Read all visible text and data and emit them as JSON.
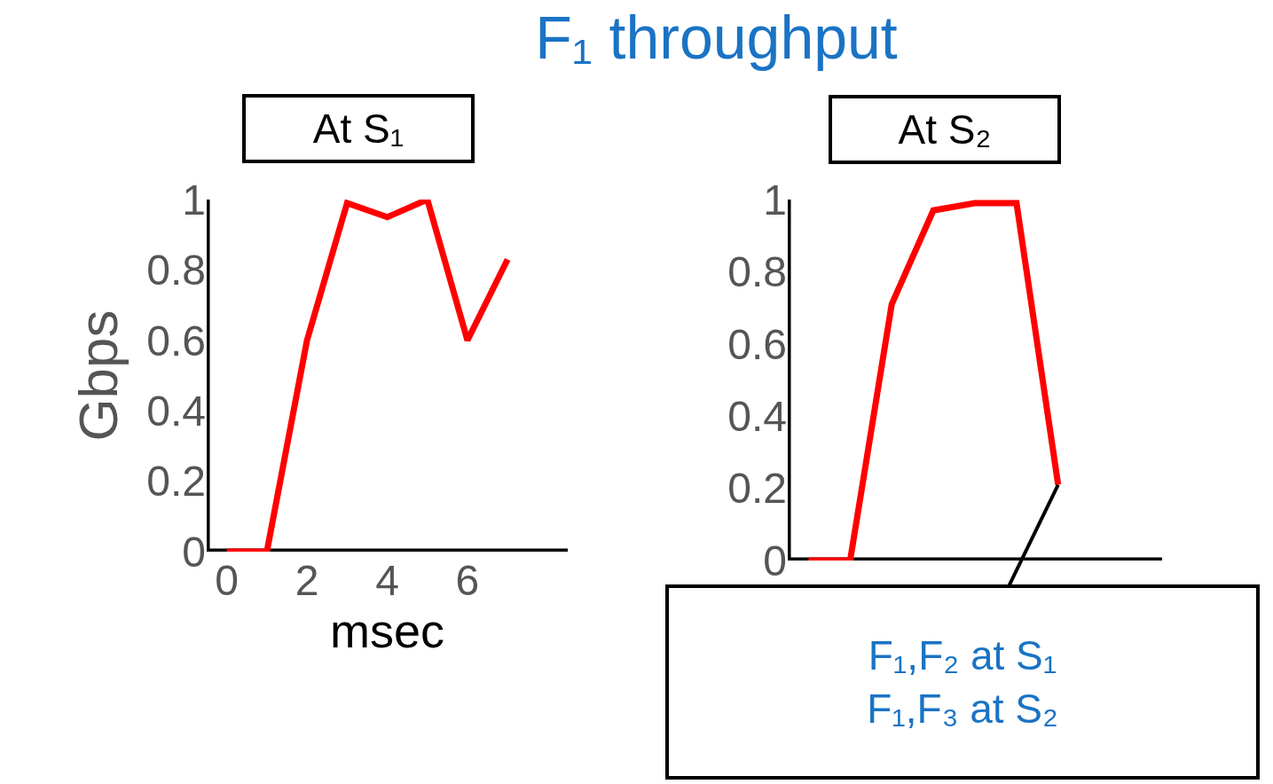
{
  "chart_data": [
    {
      "type": "line",
      "title": "At S₁",
      "annotations": [
        "F₁ throughput"
      ],
      "xlabel": "msec",
      "ylabel": "Gbps",
      "x": [
        0,
        1,
        2,
        3,
        4,
        5,
        6,
        7
      ],
      "series": [
        {
          "color": "#ff0000",
          "values": [
            0,
            0,
            0.6,
            0.99,
            0.95,
            1.0,
            0.6,
            0.83
          ]
        }
      ],
      "xlim": [
        -0.5,
        8.5
      ],
      "xticks": [
        0,
        2,
        4,
        6
      ],
      "ylim": [
        0,
        1
      ],
      "yticks": [
        0,
        0.2,
        0.4,
        0.6,
        0.8,
        1
      ],
      "grid": false,
      "marker": "none",
      "line_style": "solid"
    },
    {
      "type": "line",
      "title": "At S₂",
      "annotations": [
        "F₁,F₂ at S₁\nF₁,F₃ at S₂"
      ],
      "categories": [
        null,
        null,
        null,
        null,
        null,
        null,
        null
      ],
      "series": [
        {
          "color": "#ff0000",
          "values": [
            0,
            0,
            0.71,
            0.97,
            0.99,
            0.99,
            0.21
          ]
        }
      ],
      "ylim": [
        0,
        1
      ],
      "yticks": [
        0,
        0.2,
        0.4,
        0.6,
        0.8,
        1
      ],
      "tick_labels": "y",
      "grid": false,
      "marker": "none",
      "line_style": "solid"
    }
  ]
}
